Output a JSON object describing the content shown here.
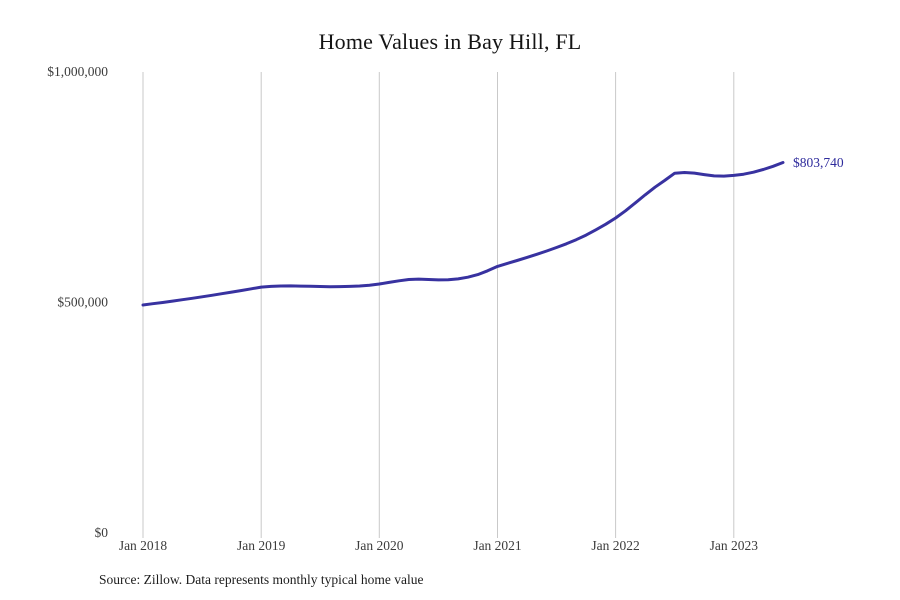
{
  "page": {
    "background": "#ffffff"
  },
  "header": {
    "title": "Home Values in Bay Hill, FL"
  },
  "footer": {
    "source_note": "Source: Zillow. Data represents monthly typical home value"
  },
  "chart_data": {
    "type": "line",
    "title": "Home Values in Bay Hill, FL",
    "xlabel": "",
    "ylabel": "",
    "ylim": [
      0,
      1000000
    ],
    "grid": "vertical-only",
    "legend_position": "none",
    "end_label": "$803,740",
    "style": {
      "line_color": "#3832a0",
      "end_label_color": "#2e2b9c",
      "grid_color": "#c9c9c9",
      "tick_text_color": "#3c3c3c",
      "line_width": 3
    },
    "y_ticks": [
      {
        "label": "$0",
        "value": 0
      },
      {
        "label": "$500,000",
        "value": 500000
      },
      {
        "label": "$1,000,000",
        "value": 1000000
      }
    ],
    "x_ticks": [
      {
        "label": "Jan 2018",
        "month_index": 0
      },
      {
        "label": "Jan 2019",
        "month_index": 12
      },
      {
        "label": "Jan 2020",
        "month_index": 24
      },
      {
        "label": "Jan 2021",
        "month_index": 36
      },
      {
        "label": "Jan 2022",
        "month_index": 48
      },
      {
        "label": "Jan 2023",
        "month_index": 60
      }
    ],
    "series": [
      {
        "name": "Monthly typical home value",
        "color": "#3832a0",
        "months": [
          "2018-01",
          "2018-02",
          "2018-03",
          "2018-04",
          "2018-05",
          "2018-06",
          "2018-07",
          "2018-08",
          "2018-09",
          "2018-10",
          "2018-11",
          "2018-12",
          "2019-01",
          "2019-02",
          "2019-03",
          "2019-04",
          "2019-05",
          "2019-06",
          "2019-07",
          "2019-08",
          "2019-09",
          "2019-10",
          "2019-11",
          "2019-12",
          "2020-01",
          "2020-02",
          "2020-03",
          "2020-04",
          "2020-05",
          "2020-06",
          "2020-07",
          "2020-08",
          "2020-09",
          "2020-10",
          "2020-11",
          "2020-12",
          "2021-01",
          "2021-02",
          "2021-03",
          "2021-04",
          "2021-05",
          "2021-06",
          "2021-07",
          "2021-08",
          "2021-09",
          "2021-10",
          "2021-11",
          "2021-12",
          "2022-01",
          "2022-02",
          "2022-03",
          "2022-04",
          "2022-05",
          "2022-06",
          "2022-07",
          "2022-08",
          "2022-09",
          "2022-10",
          "2022-11",
          "2022-12",
          "2023-01",
          "2023-02",
          "2023-03",
          "2023-04",
          "2023-05",
          "2023-06"
        ],
        "values": [
          494600,
          497300,
          500100,
          503000,
          506000,
          509100,
          512300,
          515600,
          519000,
          522500,
          526100,
          529800,
          533300,
          534900,
          535800,
          536000,
          535600,
          535100,
          534600,
          534300,
          534400,
          534900,
          535700,
          537600,
          540200,
          543500,
          547000,
          549900,
          550700,
          549900,
          549000,
          549300,
          551200,
          554800,
          560500,
          568800,
          578200,
          584800,
          591200,
          597800,
          604600,
          611700,
          619200,
          627300,
          636200,
          646200,
          657600,
          669800,
          683400,
          699000,
          716000,
          733500,
          750200,
          764800,
          780500,
          782000,
          780800,
          777400,
          774700,
          774100,
          775700,
          778400,
          782700,
          788400,
          795400,
          803740
        ]
      }
    ]
  }
}
